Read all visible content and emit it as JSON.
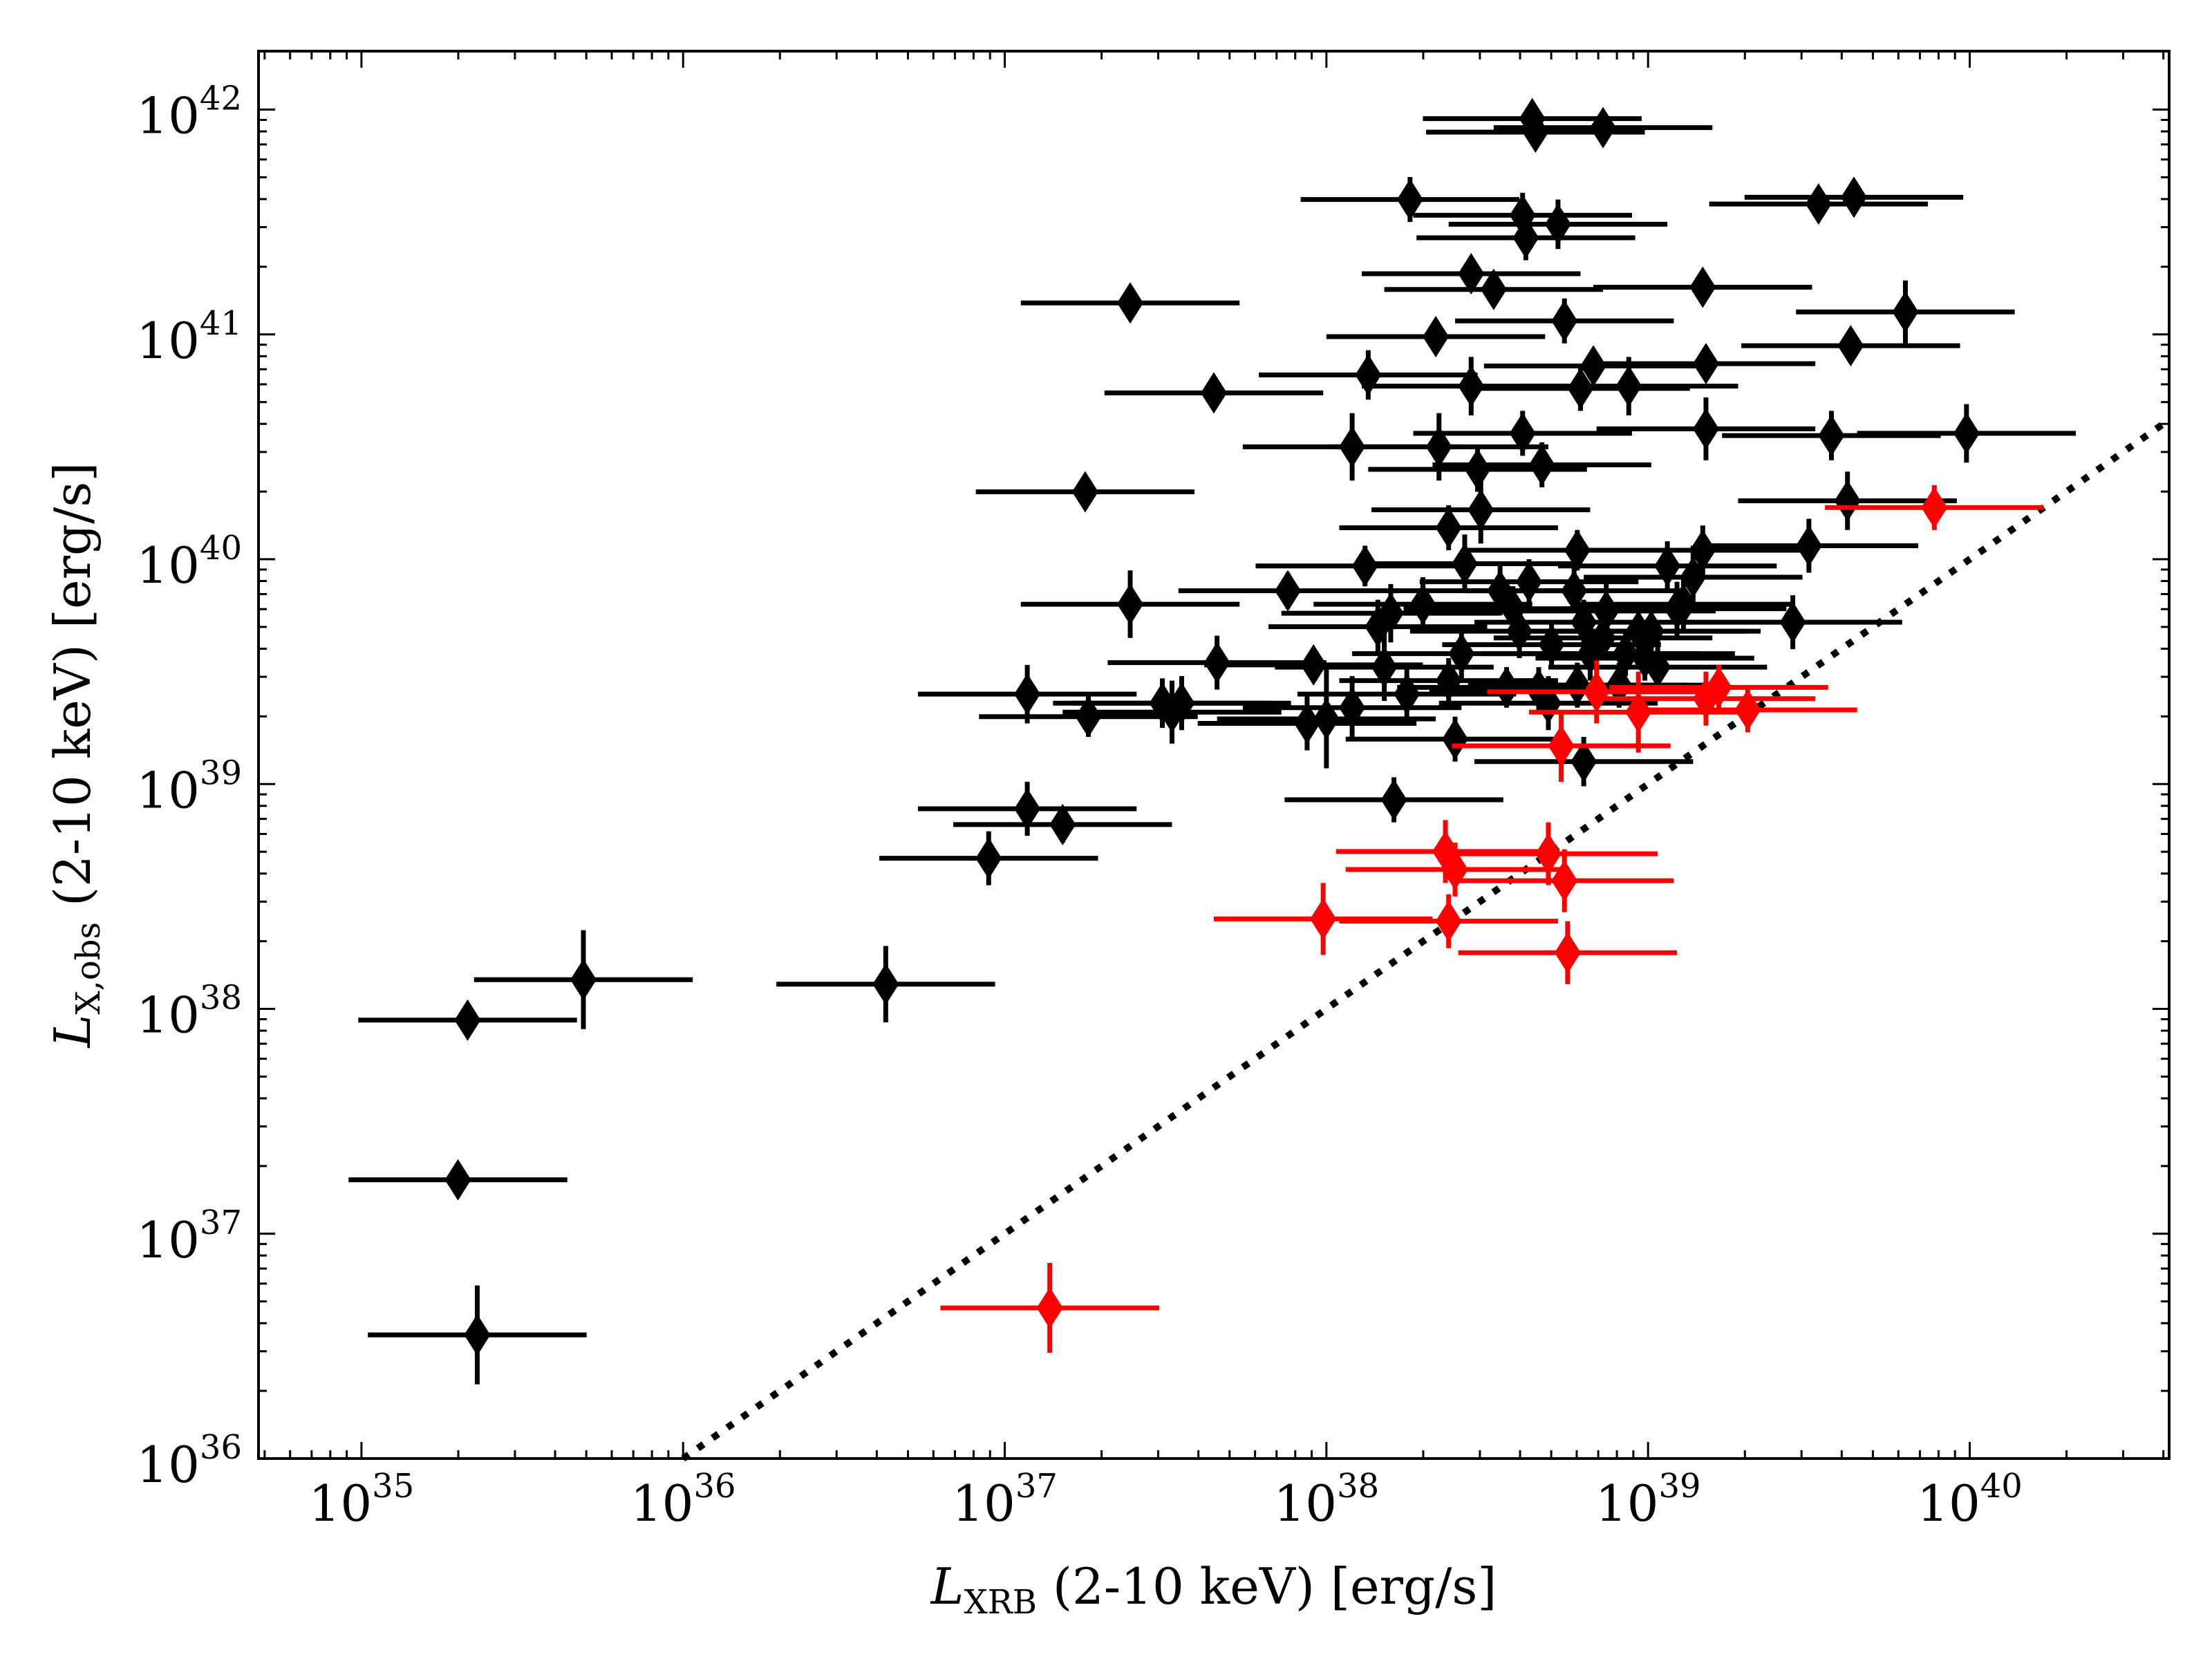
{
  "chart_data": {
    "type": "scatter",
    "title": "",
    "xlabel": {
      "main": "L",
      "sub": "XRB",
      "rest": " (2-10 keV) [erg/s]"
    },
    "ylabel": {
      "main": "L",
      "sub": "X,obs",
      "rest": " (2-10 keV) [erg/s]"
    },
    "xscale": "log",
    "yscale": "log",
    "xlim_log10": [
      34.68,
      40.62
    ],
    "ylim_log10": [
      36.0,
      42.26
    ],
    "xticks": [
      {
        "exp": 35,
        "base": "10",
        "power": "35"
      },
      {
        "exp": 36,
        "base": "10",
        "power": "36"
      },
      {
        "exp": 37,
        "base": "10",
        "power": "37"
      },
      {
        "exp": 38,
        "base": "10",
        "power": "38"
      },
      {
        "exp": 39,
        "base": "10",
        "power": "39"
      },
      {
        "exp": 40,
        "base": "10",
        "power": "40"
      }
    ],
    "yticks": [
      {
        "exp": 36,
        "base": "10",
        "power": "36"
      },
      {
        "exp": 37,
        "base": "10",
        "power": "37"
      },
      {
        "exp": 38,
        "base": "10",
        "power": "38"
      },
      {
        "exp": 39,
        "base": "10",
        "power": "39"
      },
      {
        "exp": 40,
        "base": "10",
        "power": "40"
      },
      {
        "exp": 41,
        "base": "10",
        "power": "41"
      },
      {
        "exp": 42,
        "base": "10",
        "power": "42"
      }
    ],
    "reference_line": {
      "name": "one-to-one",
      "style": "dotted",
      "color": "#000000",
      "x_log10": [
        36.0,
        40.62
      ],
      "y_log10": [
        36.0,
        40.62
      ]
    },
    "marker": "thin-diamond",
    "x_error_dex": 0.34,
    "colors": {
      "primary": "#000000",
      "highlight": "#ff0000"
    },
    "series": [
      {
        "name": "black",
        "color": "#000000",
        "points": [
          [
            35.33,
            37.95,
            0.0
          ],
          [
            35.3,
            37.24,
            0.0
          ],
          [
            35.36,
            36.55,
            0.22
          ],
          [
            35.69,
            38.13,
            0.22
          ],
          [
            36.63,
            38.11,
            0.17
          ],
          [
            36.95,
            38.67,
            0.12
          ],
          [
            37.07,
            38.89,
            0.12
          ],
          [
            37.07,
            39.4,
            0.13
          ],
          [
            37.18,
            38.82,
            0.08
          ],
          [
            37.26,
            39.3,
            0.09
          ],
          [
            37.49,
            39.36,
            0.11
          ],
          [
            37.52,
            39.32,
            0.14
          ],
          [
            37.55,
            39.36,
            0.12
          ],
          [
            37.66,
            39.54,
            0.12
          ],
          [
            37.88,
            39.86,
            0.08
          ],
          [
            37.96,
            39.53,
            0.07
          ],
          [
            38.0,
            39.29,
            0.22
          ],
          [
            38.08,
            39.34,
            0.14
          ],
          [
            37.94,
            39.27,
            0.12
          ],
          [
            37.39,
            39.8,
            0.15
          ],
          [
            37.25,
            40.3,
            0.0
          ],
          [
            37.39,
            41.14,
            0.0
          ],
          [
            37.65,
            40.74,
            0.0
          ],
          [
            38.08,
            40.5,
            0.15
          ],
          [
            38.13,
            40.82,
            0.11
          ],
          [
            38.12,
            39.97,
            0.09
          ],
          [
            38.16,
            39.7,
            0.12
          ],
          [
            38.2,
            39.76,
            0.13
          ],
          [
            38.18,
            39.52,
            0.15
          ],
          [
            38.25,
            39.4,
            0.12
          ],
          [
            38.21,
            38.93,
            0.1
          ],
          [
            38.3,
            39.8,
            0.12
          ],
          [
            38.34,
            40.99,
            0.0
          ],
          [
            38.35,
            40.5,
            0.15
          ],
          [
            38.38,
            39.46,
            0.1
          ],
          [
            38.4,
            39.2,
            0.1
          ],
          [
            38.45,
            41.27,
            0.0
          ],
          [
            38.43,
            39.98,
            0.13
          ],
          [
            38.42,
            39.58,
            0.11
          ],
          [
            38.45,
            40.77,
            0.13
          ],
          [
            38.47,
            40.4,
            0.1
          ],
          [
            38.48,
            40.22,
            0.15
          ],
          [
            38.52,
            41.2,
            0.0
          ],
          [
            38.54,
            39.86,
            0.11
          ],
          [
            38.56,
            39.43,
            0.09
          ],
          [
            38.58,
            39.78,
            0.1
          ],
          [
            38.61,
            41.53,
            0.1
          ],
          [
            38.62,
            41.43,
            0.1
          ],
          [
            38.64,
            41.96,
            0.0
          ],
          [
            38.65,
            41.9,
            0.0
          ],
          [
            38.66,
            39.42,
            0.1
          ],
          [
            38.69,
            39.36,
            0.12
          ],
          [
            38.6,
            39.68,
            0.12
          ],
          [
            38.61,
            40.56,
            0.1
          ],
          [
            38.63,
            39.9,
            0.1
          ],
          [
            38.67,
            40.42,
            0.1
          ],
          [
            38.7,
            39.62,
            0.1
          ],
          [
            38.74,
            41.06,
            0.1
          ],
          [
            38.78,
            40.04,
            0.09
          ],
          [
            38.77,
            39.86,
            0.1
          ],
          [
            38.78,
            39.44,
            0.1
          ],
          [
            38.8,
            39.72,
            0.1
          ],
          [
            38.79,
            40.76,
            0.1
          ],
          [
            38.83,
            40.86,
            0.0
          ],
          [
            38.86,
            41.92,
            0.0
          ],
          [
            38.82,
            39.58,
            0.12
          ],
          [
            38.87,
            39.77,
            0.12
          ],
          [
            38.91,
            39.44,
            0.1
          ],
          [
            38.93,
            39.58,
            0.1
          ],
          [
            38.94,
            40.77,
            0.13
          ],
          [
            38.97,
            39.68,
            0.1
          ],
          [
            38.8,
            39.1,
            0.11
          ],
          [
            39.01,
            39.68,
            0.1
          ],
          [
            39.03,
            39.52,
            0.12
          ],
          [
            39.06,
            39.97,
            0.11
          ],
          [
            39.09,
            39.78,
            0.12
          ],
          [
            39.11,
            39.8,
            0.12
          ],
          [
            39.14,
            39.92,
            0.14
          ],
          [
            39.17,
            40.04,
            0.11
          ],
          [
            39.18,
            40.58,
            0.14
          ],
          [
            39.18,
            40.87,
            0.0
          ],
          [
            39.17,
            41.21,
            0.0
          ],
          [
            39.45,
            39.72,
            0.12
          ],
          [
            39.5,
            40.06,
            0.12
          ],
          [
            39.62,
            40.26,
            0.13
          ],
          [
            39.57,
            40.55,
            0.11
          ],
          [
            39.64,
            41.61,
            0.0
          ],
          [
            39.8,
            41.1,
            0.14
          ],
          [
            39.99,
            40.56,
            0.13
          ],
          [
            39.63,
            40.95,
            0.0
          ],
          [
            38.26,
            41.6,
            0.1
          ],
          [
            38.38,
            40.14,
            0.1
          ],
          [
            38.72,
            41.49,
            0.11
          ],
          [
            39.53,
            41.58,
            0.0
          ],
          [
            38.86,
            39.65,
            0.1
          ],
          [
            38.99,
            39.56,
            0.1
          ]
        ]
      },
      {
        "name": "red",
        "color": "#ff0000",
        "points": [
          [
            37.14,
            36.67,
            0.2
          ],
          [
            37.99,
            38.4,
            0.16
          ],
          [
            38.37,
            38.7,
            0.14
          ],
          [
            38.4,
            38.62,
            0.12
          ],
          [
            38.38,
            38.39,
            0.12
          ],
          [
            38.69,
            38.69,
            0.14
          ],
          [
            38.74,
            38.57,
            0.14
          ],
          [
            38.75,
            38.25,
            0.14
          ],
          [
            38.73,
            39.17,
            0.16
          ],
          [
            38.84,
            39.41,
            0.14
          ],
          [
            38.97,
            39.32,
            0.18
          ],
          [
            39.18,
            39.38,
            0.12
          ],
          [
            39.22,
            39.43,
            0.1
          ],
          [
            39.31,
            39.33,
            0.1
          ],
          [
            39.89,
            40.23,
            0.1
          ]
        ]
      }
    ]
  }
}
